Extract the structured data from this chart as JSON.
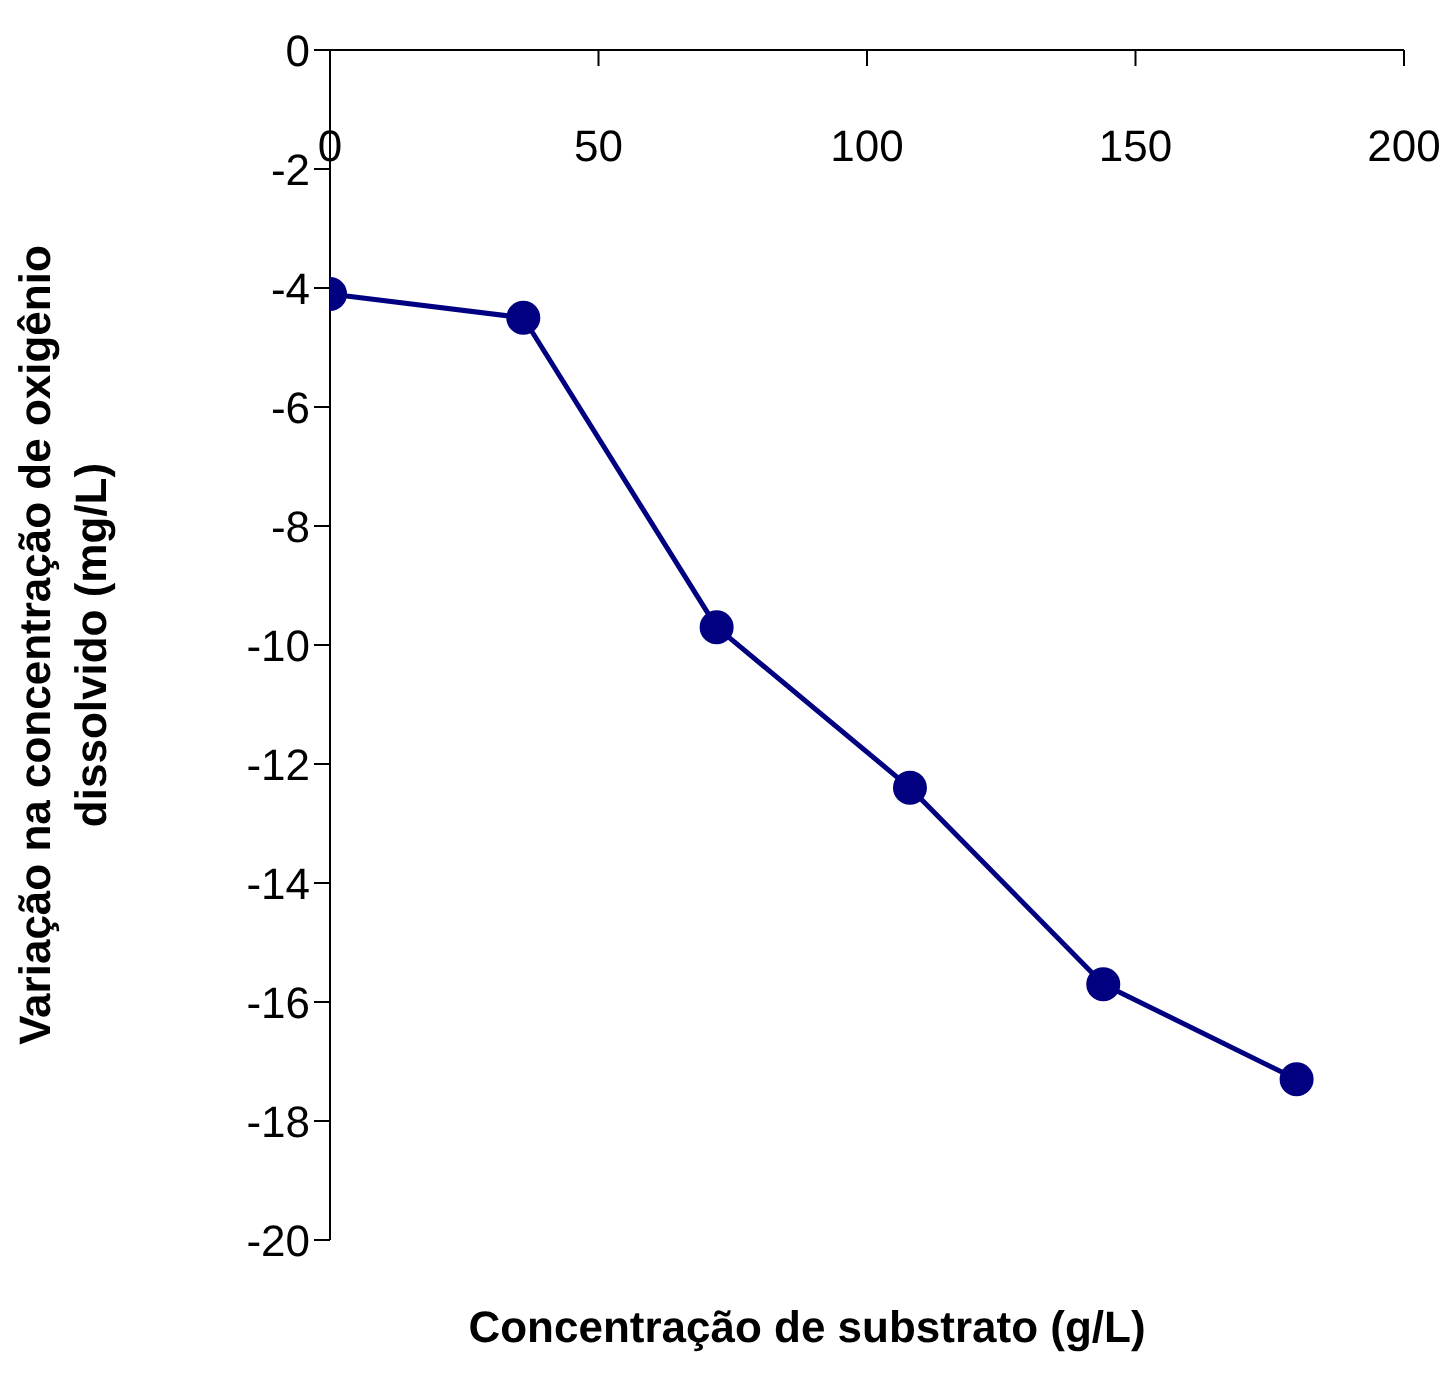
{
  "chart_data": {
    "type": "line",
    "xlabel": "Concentração de substrato (g/L)",
    "ylabel": "Variação na concentração de oxigênio\ndissolvido (mg/L)",
    "x": [
      0,
      36,
      72,
      108,
      144,
      180
    ],
    "series": [
      {
        "color": "#000080",
        "values": [
          -4.1,
          -4.5,
          -9.7,
          -12.4,
          -15.7,
          -17.3
        ]
      }
    ],
    "xlim": [
      0,
      200
    ],
    "xticks": [
      0,
      50,
      100,
      150,
      200
    ],
    "ylim": [
      -20,
      0
    ],
    "yticks": [
      -20,
      -18,
      -16,
      -14,
      -12,
      -10,
      -8,
      -6,
      -4,
      -2,
      0
    ],
    "grid": false,
    "legend": false,
    "marker": "circle",
    "line_style": "solid"
  }
}
